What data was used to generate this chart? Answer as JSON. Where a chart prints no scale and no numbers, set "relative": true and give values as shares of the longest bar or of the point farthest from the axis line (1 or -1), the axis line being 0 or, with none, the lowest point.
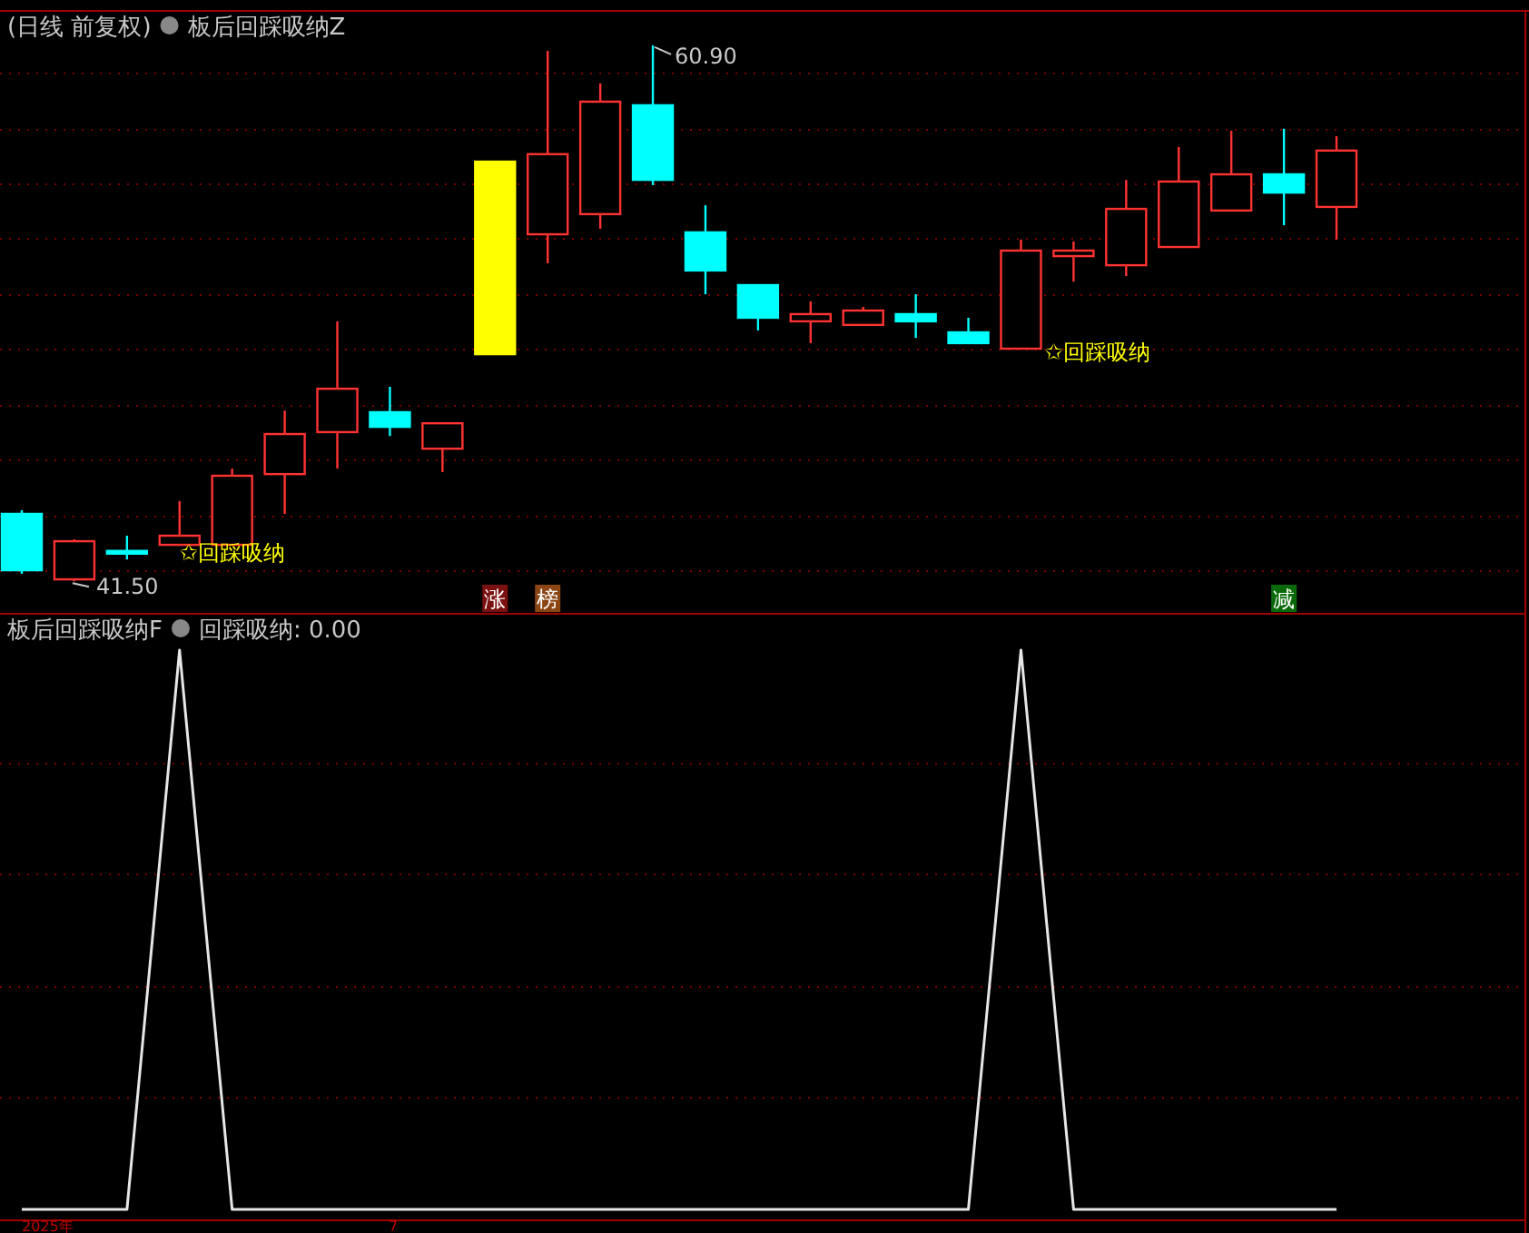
{
  "chart_data": [
    {
      "type": "candlestick",
      "title": "(日线 前复权)",
      "subtitle": "板后回踩吸纳Z",
      "categories": [
        null,
        null,
        null,
        null,
        null,
        null,
        null,
        null,
        null,
        null,
        null,
        null,
        null,
        null,
        null,
        null,
        null,
        null,
        null,
        null,
        null,
        null,
        null,
        null,
        null,
        null
      ],
      "ohlc": [
        [
          43.94,
          44.07,
          41.77,
          41.9
        ],
        [
          41.57,
          43.02,
          41.5,
          42.95
        ],
        [
          42.6,
          43.15,
          42.29,
          42.5
        ],
        [
          42.82,
          44.4,
          42.8,
          43.15
        ],
        [
          42.82,
          45.58,
          42.8,
          45.32
        ],
        [
          45.38,
          47.68,
          43.94,
          46.83
        ],
        [
          46.9,
          50.91,
          45.58,
          48.47
        ],
        [
          47.62,
          48.54,
          46.76,
          47.09
        ],
        [
          46.3,
          47.22,
          45.45,
          47.22
        ],
        [
          49.72,
          56.69,
          49.72,
          56.69
        ],
        [
          54.06,
          60.7,
          53.01,
          56.96
        ],
        [
          54.79,
          59.52,
          54.26,
          58.86
        ],
        [
          58.73,
          60.9,
          55.84,
          56.03
        ],
        [
          54.13,
          55.11,
          51.89,
          52.75
        ],
        [
          52.22,
          52.22,
          50.58,
          51.04
        ],
        [
          50.91,
          51.63,
          50.12,
          51.17
        ],
        [
          50.78,
          51.43,
          50.78,
          51.3
        ],
        [
          51.17,
          51.89,
          50.31,
          50.91
        ],
        [
          50.51,
          51.04,
          50.12,
          50.12
        ],
        [
          49.92,
          53.87,
          49.92,
          53.47
        ],
        [
          53.27,
          53.8,
          52.35,
          53.47
        ],
        [
          52.94,
          56.03,
          52.55,
          54.98
        ],
        [
          53.6,
          57.22,
          53.6,
          55.97
        ],
        [
          54.92,
          57.81,
          54.92,
          56.23
        ],
        [
          56.23,
          57.88,
          54.39,
          55.57
        ],
        [
          55.05,
          57.61,
          53.87,
          57.09
        ]
      ],
      "colors": [
        "#00ffff",
        "#ff3232",
        "#00ffff",
        "#ff3232",
        "#ff3232",
        "#ff3232",
        "#ff3232",
        "#00ffff",
        "#ff3232",
        "#ffff00",
        "#ff3232",
        "#ff3232",
        "#00ffff",
        "#00ffff",
        "#00ffff",
        "#ff3232",
        "#ff3232",
        "#00ffff",
        "#00ffff",
        "#ff3232",
        "#ff3232",
        "#ff3232",
        "#ff3232",
        "#ff3232",
        "#00ffff",
        "#ff3232"
      ],
      "annotations": [
        "60.90",
        "41.50",
        "✩回踩吸纳",
        "✩回踩吸纳",
        "涨",
        "榜",
        "减",
        "2025年",
        "7"
      ],
      "ylim": [
        40.39,
        62.08
      ],
      "yticks": [
        {
          "value": 41.9,
          "label": null
        },
        {
          "value": 43.9,
          "label": null
        },
        {
          "value": 45.9,
          "label": null
        },
        {
          "value": 47.9,
          "label": null
        },
        {
          "value": 49.9,
          "label": null
        },
        {
          "value": 51.9,
          "label": null
        },
        {
          "value": 53.9,
          "label": null
        },
        {
          "value": 55.9,
          "label": null
        },
        {
          "value": 57.9,
          "label": null
        },
        {
          "value": 59.9,
          "label": null
        }
      ],
      "grid": "y"
    },
    {
      "type": "line",
      "title": "板后回踩吸纳F",
      "subtitle": "回踩吸纳: 0.00",
      "relative": true,
      "categories": [
        null,
        null,
        null,
        null,
        null,
        null,
        null,
        null,
        null,
        null,
        null,
        null,
        null,
        null,
        null,
        null,
        null,
        null,
        null,
        null,
        null,
        null,
        null,
        null,
        null,
        null
      ],
      "series": [
        {
          "color": "#e6e6e6",
          "values": [
            0,
            0,
            0,
            1,
            0,
            0,
            0,
            0,
            0,
            0,
            0,
            0,
            0,
            0,
            0,
            0,
            0,
            0,
            0,
            1,
            0,
            0,
            0,
            0,
            0,
            0
          ]
        }
      ],
      "ref_lines": [
        {
          "axis": "y",
          "value": 0.2,
          "color": "#7a0000",
          "line_style": "dotted"
        },
        {
          "axis": "y",
          "value": 0.4,
          "color": "#7a0000",
          "line_style": "dotted"
        },
        {
          "axis": "y",
          "value": 0.6,
          "color": "#7a0000",
          "line_style": "dotted"
        },
        {
          "axis": "y",
          "value": 0.8,
          "color": "#7a0000",
          "line_style": "dotted"
        }
      ]
    }
  ]
}
